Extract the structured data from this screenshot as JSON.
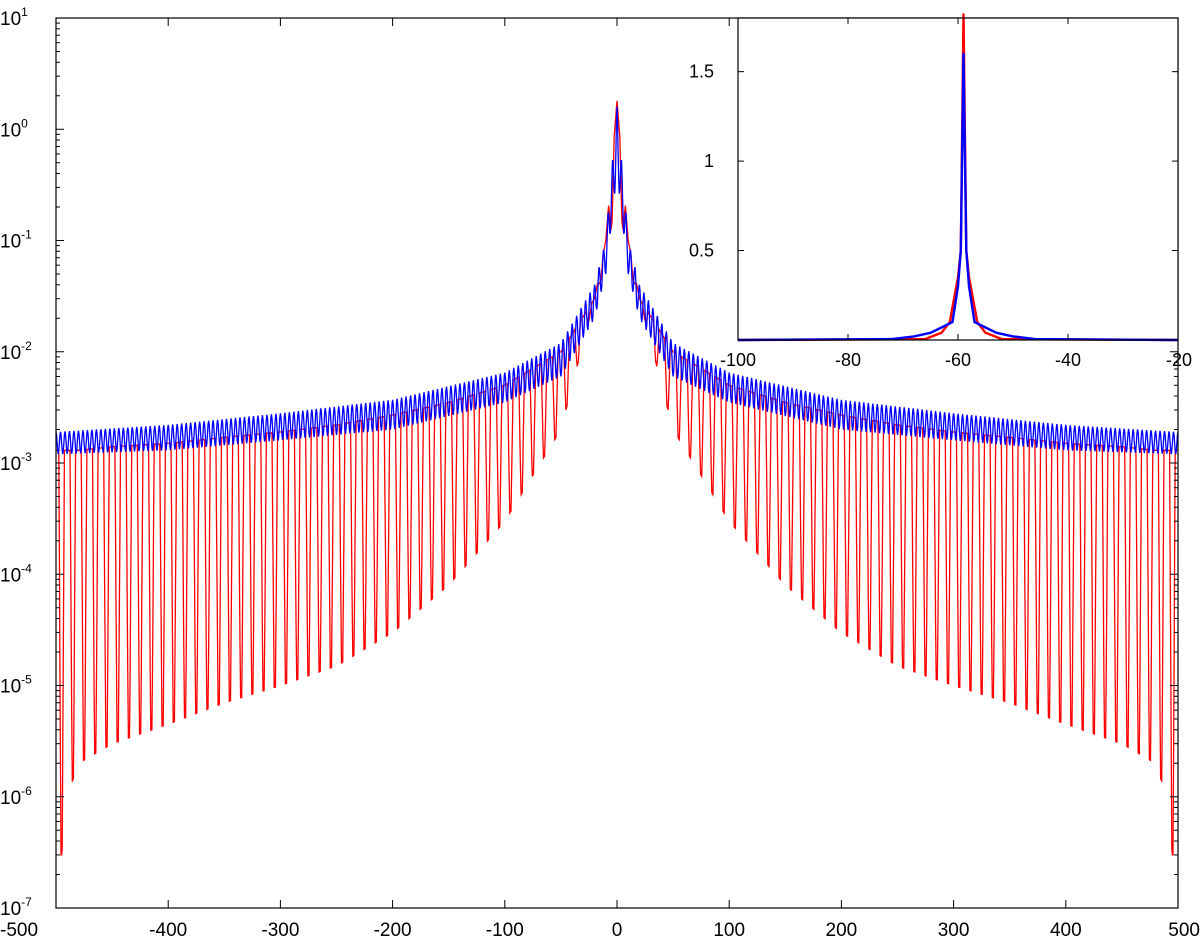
{
  "chart_data": [
    {
      "type": "line",
      "title": "",
      "xlabel": "",
      "ylabel": "",
      "xlim": [
        -500,
        500
      ],
      "ylim": [
        1e-07,
        10
      ],
      "yscale": "log",
      "grid": false,
      "x_ticks": [
        "-500",
        "-400",
        "-300",
        "-200",
        "-100",
        "0",
        "100",
        "200",
        "300",
        "400",
        "500"
      ],
      "y_ticks": [
        {
          "base": "10",
          "exp": "-7"
        },
        {
          "base": "10",
          "exp": "-6"
        },
        {
          "base": "10",
          "exp": "-5"
        },
        {
          "base": "10",
          "exp": "-4"
        },
        {
          "base": "10",
          "exp": "-3"
        },
        {
          "base": "10",
          "exp": "-2"
        },
        {
          "base": "10",
          "exp": "-1"
        },
        {
          "base": "10",
          "exp": "0"
        },
        {
          "base": "10",
          "exp": "1"
        }
      ],
      "series": [
        {
          "color": "#ff0000",
          "x": [
            -495,
            -490,
            -480,
            -450,
            -400,
            -350,
            -300,
            -250,
            -200,
            -150,
            -100,
            -50,
            -20,
            -10,
            0,
            10,
            20,
            50,
            100,
            150,
            200,
            250,
            300,
            350,
            400,
            450,
            480,
            490,
            495
          ],
          "upper": [
            0.0013,
            0.0013,
            0.0013,
            0.0014,
            0.0015,
            0.0017,
            0.0019,
            0.0022,
            0.0027,
            0.0035,
            0.005,
            0.01,
            0.03,
            0.1,
            1.8,
            0.1,
            0.03,
            0.01,
            0.005,
            0.0035,
            0.0027,
            0.0022,
            0.0019,
            0.0017,
            0.0015,
            0.0014,
            0.0013,
            0.0013,
            0.0013
          ],
          "troughs": [
            3e-07,
            1e-06,
            2e-06,
            3e-06,
            4.5e-06,
            7e-06,
            1e-05,
            1.5e-05,
            3e-05,
            8e-05,
            0.0003,
            0.002,
            0.03,
            0.06,
            0.3,
            0.06,
            0.03,
            0.002,
            0.0003,
            8e-05,
            3e-05,
            1.5e-05,
            1e-05,
            7e-06,
            4.5e-06,
            3e-06,
            2e-06,
            1e-06,
            3e-07
          ]
        },
        {
          "color": "#0000ff",
          "x": [
            -500,
            -400,
            -300,
            -200,
            -100,
            -50,
            -20,
            -10,
            0,
            10,
            20,
            50,
            100,
            200,
            300,
            400,
            500
          ],
          "upper": [
            0.0019,
            0.0022,
            0.0028,
            0.0037,
            0.0065,
            0.012,
            0.04,
            0.1,
            1.6,
            0.1,
            0.04,
            0.012,
            0.0065,
            0.0037,
            0.0028,
            0.0022,
            0.0019
          ],
          "lower": [
            0.0012,
            0.0013,
            0.0016,
            0.002,
            0.0035,
            0.006,
            0.02,
            0.05,
            0.4,
            0.05,
            0.02,
            0.006,
            0.0035,
            0.002,
            0.0016,
            0.0013,
            0.0012
          ]
        }
      ]
    },
    {
      "type": "line",
      "title": "",
      "xlabel": "",
      "ylabel": "",
      "xlim": [
        -100,
        -20
      ],
      "ylim": [
        0,
        1.8
      ],
      "grid": false,
      "x_ticks": [
        "-100",
        "-80",
        "-60",
        "-40",
        "-20"
      ],
      "y_ticks": [
        "0.5",
        "1",
        "1.5"
      ],
      "y_tick_values": [
        0.5,
        1,
        1.5
      ],
      "series": [
        {
          "color": "#ff0000",
          "peak_x": -59,
          "x": [
            -100,
            -66,
            -63,
            -61.5,
            -60,
            -59.5,
            -59,
            -58.5,
            -58,
            -56.5,
            -55,
            -52,
            -20
          ],
          "y": [
            0,
            0.005,
            0.04,
            0.1,
            0.35,
            0.5,
            1.82,
            0.5,
            0.35,
            0.1,
            0.04,
            0.005,
            0
          ]
        },
        {
          "color": "#0000ff",
          "peak_x": -59,
          "x": [
            -100,
            -72,
            -68,
            -65,
            -63,
            -61,
            -60,
            -59.5,
            -59,
            -58.5,
            -58,
            -57,
            -55,
            -53,
            -50,
            -46,
            -20
          ],
          "y": [
            0,
            0.005,
            0.02,
            0.04,
            0.07,
            0.1,
            0.3,
            0.5,
            1.6,
            0.5,
            0.3,
            0.1,
            0.07,
            0.04,
            0.02,
            0.005,
            0
          ]
        }
      ]
    }
  ]
}
